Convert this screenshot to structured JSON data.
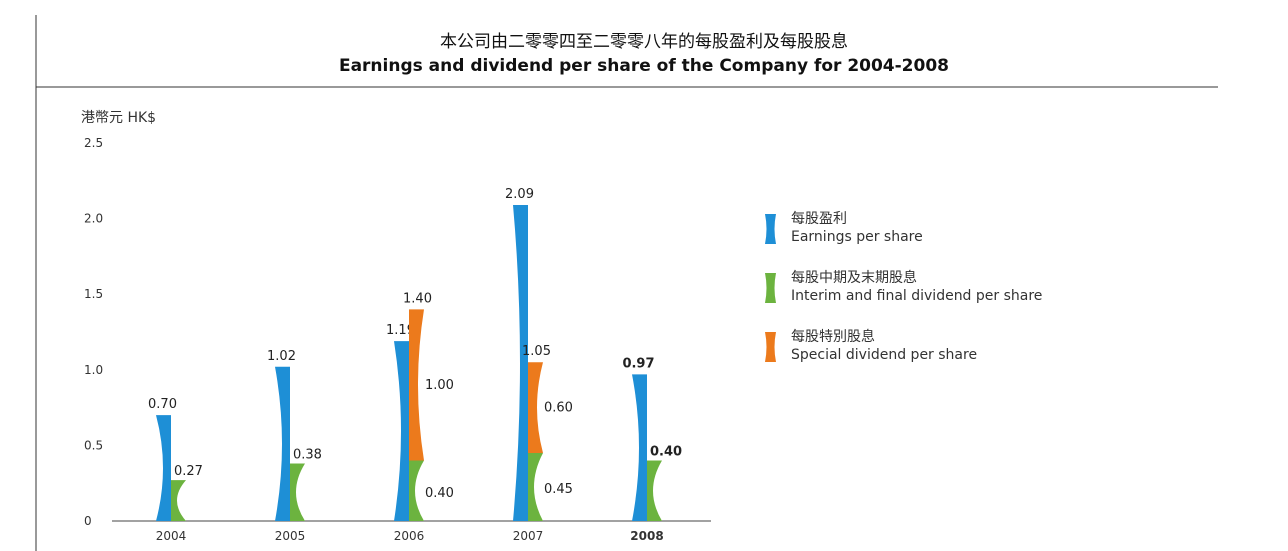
{
  "title_zh": "本公司由二零零四至二零零八年的每股盈利及每股股息",
  "title_en": "Earnings and dividend per share of the Company for 2004-2008",
  "colors": {
    "earnings": "#1e8fd6",
    "interim_final": "#6cb33f",
    "special": "#ec7a1c",
    "axis": "#444444",
    "rule": "#333333"
  },
  "chart_data": {
    "type": "bar",
    "ylabel": "港幣元 HK$",
    "ylim": [
      0,
      2.5
    ],
    "yticks": [
      "0",
      "0.5",
      "1.0",
      "1.5",
      "2.0",
      "2.5"
    ],
    "categories": [
      "2004",
      "2005",
      "2006",
      "2007",
      "2008"
    ],
    "category_bold": [
      false,
      false,
      false,
      false,
      true
    ],
    "series": [
      {
        "key": "earnings",
        "name_zh": "每股盈利",
        "name": "Earnings per share",
        "values": [
          0.7,
          1.02,
          1.19,
          2.09,
          0.97
        ],
        "labels": [
          "0.70",
          "1.02",
          "1.19",
          "2.09",
          "0.97"
        ]
      },
      {
        "key": "interim_final",
        "name_zh": "每股中期及末期股息",
        "name": "Interim and final dividend per share",
        "values": [
          0.27,
          0.38,
          0.4,
          0.45,
          0.4
        ],
        "labels": [
          "0.27",
          "0.38",
          "0.40",
          "0.45",
          "0.40"
        ]
      },
      {
        "key": "special",
        "name_zh": "每股特別股息",
        "name": "Special dividend per share",
        "values": [
          0,
          0,
          1.0,
          0.6,
          0
        ],
        "labels": [
          "",
          "",
          "1.00",
          "0.60",
          ""
        ],
        "stack_total_labels": [
          "",
          "",
          "1.40",
          "1.05",
          ""
        ]
      }
    ],
    "legend_position": "right"
  }
}
